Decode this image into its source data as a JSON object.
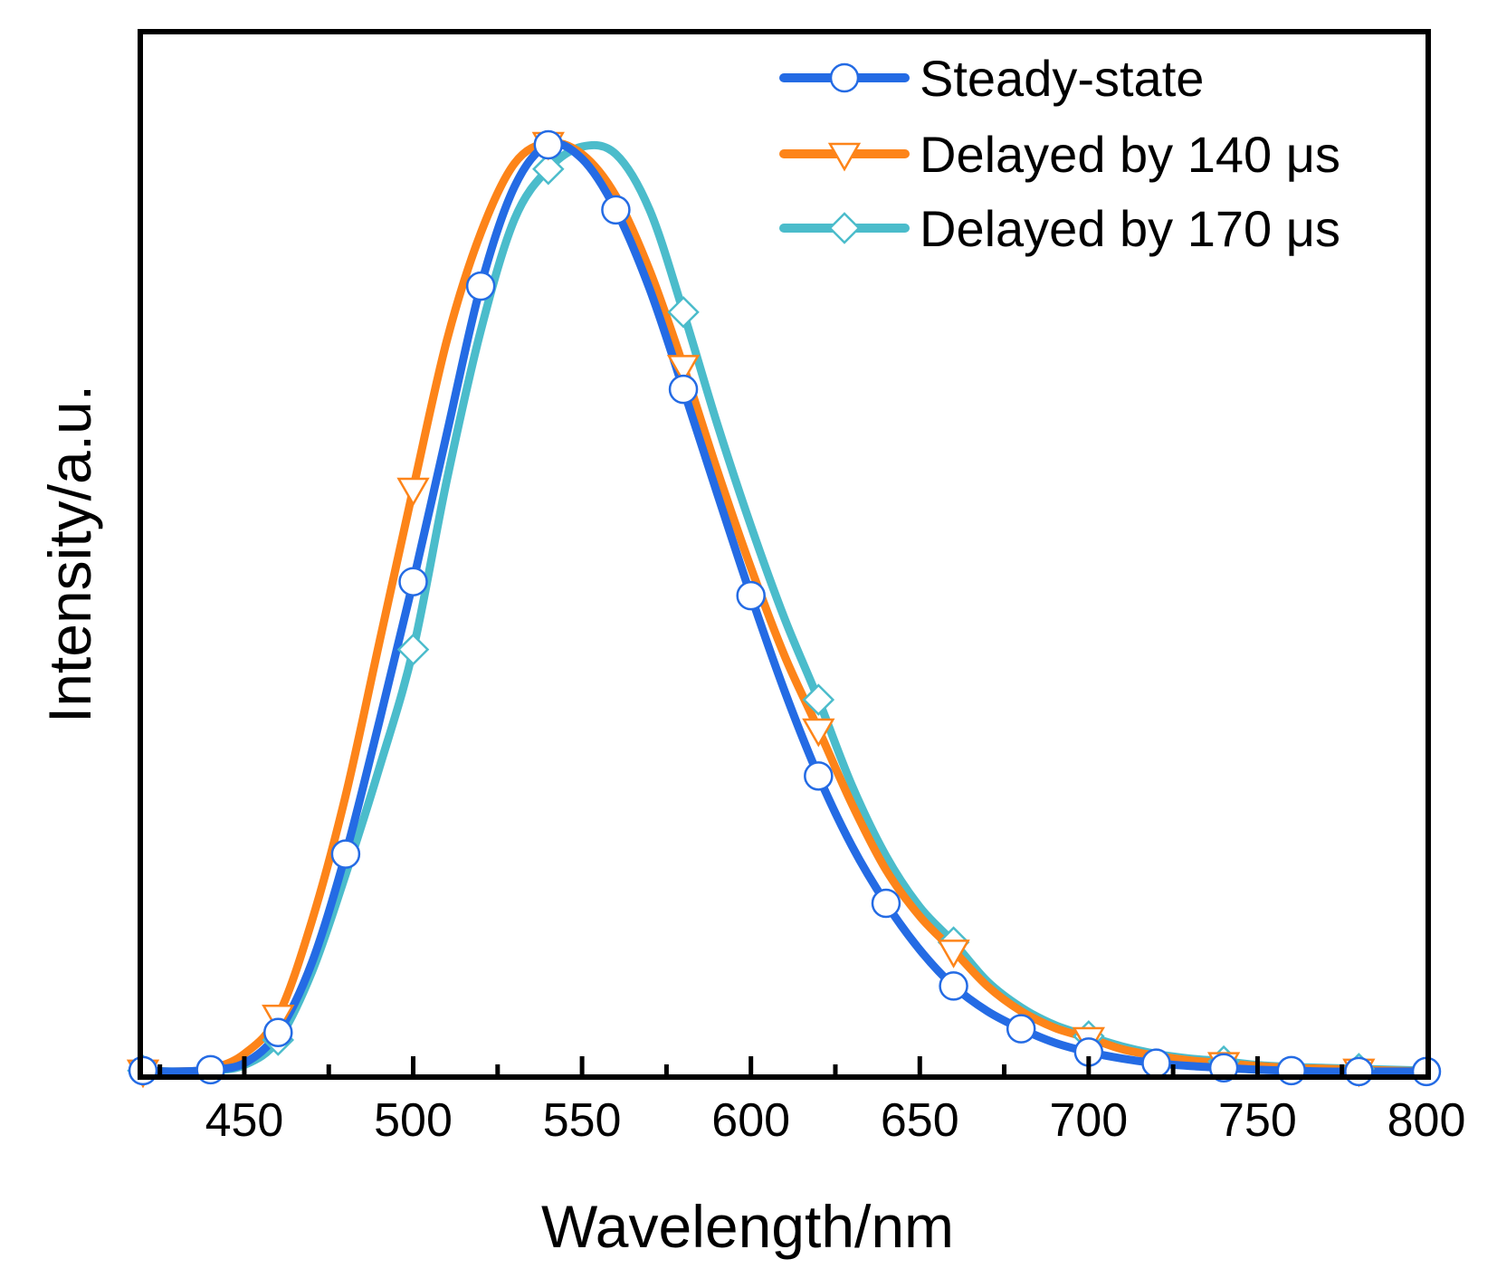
{
  "chart_data": {
    "type": "line",
    "title": "",
    "xlabel": "Wavelength/nm",
    "ylabel": "Intensity/a.u.",
    "xlim": [
      420,
      800
    ],
    "ylim": [
      0,
      1.06
    ],
    "x_major_ticks": [
      450,
      500,
      550,
      600,
      650,
      700,
      750,
      800
    ],
    "x_minor_ticks": [
      425,
      475,
      525,
      575,
      625,
      675,
      725,
      775
    ],
    "x_tick_labels": [
      "450",
      "500",
      "550",
      "600",
      "650",
      "700",
      "750",
      "800"
    ],
    "y_ticks_shown": false,
    "grid": false,
    "legend_position": "top-right",
    "x": [
      420,
      430,
      440,
      450,
      460,
      470,
      480,
      490,
      500,
      510,
      520,
      530,
      540,
      550,
      560,
      570,
      580,
      590,
      600,
      610,
      620,
      630,
      640,
      650,
      660,
      670,
      680,
      690,
      700,
      710,
      720,
      730,
      740,
      750,
      760,
      770,
      780,
      790,
      800
    ],
    "series": [
      {
        "name": "Steady-state",
        "color": "#246BE4",
        "marker": "circle",
        "marker_every": 20,
        "values": [
          0.004,
          0.003,
          0.005,
          0.012,
          0.045,
          0.12,
          0.237,
          0.38,
          0.53,
          0.69,
          0.848,
          0.955,
          1.0,
          0.985,
          0.93,
          0.845,
          0.737,
          0.625,
          0.515,
          0.412,
          0.321,
          0.245,
          0.184,
          0.134,
          0.095,
          0.068,
          0.049,
          0.034,
          0.024,
          0.017,
          0.012,
          0.009,
          0.007,
          0.005,
          0.004,
          0.003,
          0.003,
          0.003,
          0.003
        ]
      },
      {
        "name": "Delayed by 140 μs",
        "color": "#FD8419",
        "marker": "triangle-down",
        "marker_every": 40,
        "values": [
          0.004,
          0.003,
          0.006,
          0.022,
          0.063,
          0.165,
          0.3,
          0.465,
          0.63,
          0.79,
          0.905,
          0.98,
          1.002,
          0.99,
          0.945,
          0.865,
          0.762,
          0.65,
          0.545,
          0.45,
          0.371,
          0.29,
          0.22,
          0.17,
          0.133,
          0.095,
          0.068,
          0.05,
          0.039,
          0.027,
          0.02,
          0.015,
          0.012,
          0.009,
          0.007,
          0.006,
          0.005,
          0.004,
          0.003
        ]
      },
      {
        "name": "Delayed by 170 μs",
        "color": "#4BBCCB",
        "marker": "diamond",
        "marker_every": 40,
        "values": [
          0.004,
          0.003,
          0.004,
          0.01,
          0.037,
          0.11,
          0.215,
          0.33,
          0.457,
          0.64,
          0.8,
          0.92,
          0.974,
          0.998,
          0.99,
          0.93,
          0.82,
          0.7,
          0.59,
          0.49,
          0.403,
          0.31,
          0.235,
          0.18,
          0.142,
          0.1,
          0.072,
          0.053,
          0.041,
          0.03,
          0.022,
          0.017,
          0.014,
          0.01,
          0.008,
          0.007,
          0.006,
          0.005,
          0.004
        ]
      }
    ]
  }
}
